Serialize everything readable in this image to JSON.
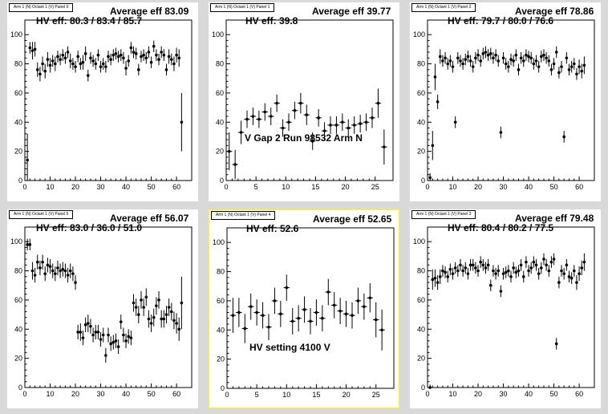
{
  "canvas": {
    "background": "#d9d9d9",
    "highlight_color": "#ffff00"
  },
  "chart_data": [
    {
      "type": "scatter",
      "title": "Arm 1 (N) Octant 1 (V) Panel 0",
      "avg_text": "Average eff 83.09",
      "hv_text": "HV eff:   80.3 / 83.4 / 85.7",
      "annotation": "",
      "highlighted": false,
      "xlim": [
        0,
        66
      ],
      "ylim": [
        0,
        110
      ],
      "xticks": [
        0,
        10,
        20,
        30,
        40,
        50,
        60
      ],
      "yticks": [
        0,
        20,
        40,
        60,
        80,
        100
      ],
      "x": [
        1,
        2,
        3,
        4,
        5,
        6,
        7,
        8,
        9,
        10,
        11,
        12,
        13,
        14,
        15,
        16,
        17,
        18,
        19,
        20,
        21,
        22,
        23,
        24,
        25,
        26,
        27,
        28,
        29,
        30,
        31,
        32,
        33,
        34,
        35,
        36,
        37,
        38,
        39,
        40,
        41,
        42,
        43,
        44,
        45,
        46,
        47,
        48,
        49,
        50,
        51,
        52,
        53,
        54,
        55,
        56,
        57,
        58,
        59,
        60,
        61,
        62
      ],
      "y": [
        14,
        91,
        89,
        90,
        76,
        73,
        80,
        75,
        83,
        79,
        82,
        80,
        85,
        83,
        86,
        84,
        88,
        82,
        80,
        78,
        85,
        80,
        81,
        87,
        72,
        84,
        82,
        80,
        86,
        78,
        80,
        78,
        85,
        83,
        86,
        87,
        85,
        86,
        84,
        77,
        82,
        91,
        88,
        87,
        76,
        85,
        86,
        84,
        88,
        81,
        92,
        86,
        83,
        88,
        86,
        76,
        85,
        83,
        80,
        86,
        84,
        40
      ],
      "yerr": [
        18,
        4,
        6,
        5,
        5,
        5,
        5,
        5,
        5,
        5,
        4,
        5,
        4,
        4,
        4,
        4,
        4,
        5,
        4,
        4,
        4,
        4,
        5,
        5,
        4,
        4,
        4,
        4,
        4,
        4,
        4,
        4,
        4,
        4,
        4,
        4,
        4,
        4,
        4,
        5,
        4,
        4,
        4,
        4,
        4,
        4,
        4,
        4,
        4,
        4,
        4,
        4,
        4,
        4,
        4,
        4,
        5,
        4,
        5,
        5,
        6,
        20
      ]
    },
    {
      "type": "scatter",
      "title": "Arm 1 (N) Octant 1 (V) Panel 1",
      "avg_text": "Average eff 39.77",
      "hv_text": "HV eff:   39.8",
      "annotation": "V Gap 2 Run 98532 Arm N",
      "highlighted": false,
      "xlim": [
        0,
        28
      ],
      "ylim": [
        0,
        110
      ],
      "xticks": [
        0,
        5,
        10,
        15,
        20,
        25
      ],
      "yticks": [
        0,
        20,
        40,
        60,
        80,
        100
      ],
      "x": [
        0.5,
        1.5,
        2.5,
        3.5,
        4.5,
        5.5,
        6.5,
        7.5,
        8.5,
        9.5,
        10.5,
        11.5,
        12.5,
        13.5,
        14.5,
        15.5,
        16.5,
        17.5,
        18.5,
        19.5,
        20.5,
        21.5,
        22.5,
        23.5,
        24.5,
        25.5,
        26.5
      ],
      "y": [
        20,
        11,
        33,
        42,
        44,
        42,
        47,
        44,
        53,
        36,
        40,
        48,
        53,
        45,
        27,
        43,
        34,
        38,
        38,
        40,
        36,
        38,
        39,
        40,
        43,
        53,
        23
      ],
      "yerr": [
        13,
        10,
        8,
        6,
        6,
        6,
        6,
        6,
        6,
        6,
        6,
        6,
        7,
        7,
        6,
        6,
        6,
        6,
        6,
        6,
        6,
        6,
        6,
        6,
        7,
        10,
        12
      ]
    },
    {
      "type": "scatter",
      "title": "Arm 1 (N) Octant 1 (V) Panel 2",
      "avg_text": "Average eff 78.86",
      "hv_text": "HV eff:   79.7 / 80.0 / 76.6",
      "annotation": "",
      "highlighted": false,
      "xlim": [
        0,
        66
      ],
      "ylim": [
        0,
        110
      ],
      "xticks": [
        0,
        10,
        20,
        30,
        40,
        50,
        60
      ],
      "yticks": [
        0,
        20,
        40,
        60,
        80,
        100
      ],
      "x": [
        1,
        2,
        3,
        4,
        5,
        6,
        7,
        8,
        9,
        10,
        11,
        12,
        13,
        14,
        15,
        16,
        17,
        18,
        19,
        20,
        21,
        22,
        23,
        24,
        25,
        26,
        27,
        28,
        29,
        30,
        31,
        32,
        33,
        34,
        35,
        36,
        37,
        38,
        39,
        40,
        41,
        42,
        43,
        44,
        45,
        46,
        47,
        48,
        49,
        50,
        51,
        52,
        53,
        54,
        55,
        56,
        57,
        58,
        59,
        60,
        61,
        62
      ],
      "y": [
        2,
        24,
        71,
        54,
        85,
        82,
        84,
        80,
        82,
        78,
        40,
        84,
        82,
        80,
        83,
        85,
        82,
        78,
        84,
        86,
        82,
        87,
        88,
        86,
        87,
        84,
        86,
        82,
        33,
        84,
        80,
        78,
        83,
        82,
        86,
        76,
        84,
        82,
        86,
        85,
        84,
        80,
        82,
        78,
        85,
        86,
        84,
        82,
        76,
        80,
        88,
        74,
        78,
        30,
        84,
        76,
        78,
        80,
        73,
        78,
        75,
        79
      ],
      "yerr": [
        3,
        10,
        9,
        5,
        5,
        4,
        4,
        4,
        4,
        4,
        4,
        4,
        4,
        4,
        4,
        4,
        4,
        4,
        4,
        4,
        4,
        4,
        4,
        4,
        4,
        4,
        4,
        4,
        4,
        4,
        4,
        4,
        4,
        4,
        4,
        4,
        4,
        4,
        4,
        4,
        4,
        4,
        4,
        4,
        4,
        4,
        4,
        4,
        4,
        4,
        4,
        4,
        4,
        4,
        4,
        4,
        4,
        4,
        4,
        5,
        5,
        6
      ]
    },
    {
      "type": "scatter",
      "title": "Arm 1 (N) Octant 1 (V) Panel 5",
      "avg_text": "Average eff 56.07",
      "hv_text": "HV eff:   83.0 / 36.0 / 51.0",
      "annotation": "",
      "highlighted": false,
      "xlim": [
        0,
        66
      ],
      "ylim": [
        0,
        110
      ],
      "xticks": [
        0,
        10,
        20,
        30,
        40,
        50,
        60
      ],
      "yticks": [
        0,
        20,
        40,
        60,
        80,
        100
      ],
      "x": [
        1,
        2,
        3,
        4,
        5,
        6,
        7,
        8,
        9,
        10,
        11,
        12,
        13,
        14,
        15,
        16,
        17,
        18,
        19,
        20,
        21,
        22,
        23,
        24,
        25,
        26,
        27,
        28,
        29,
        30,
        31,
        32,
        33,
        34,
        35,
        36,
        37,
        38,
        39,
        40,
        41,
        42,
        43,
        44,
        45,
        46,
        47,
        48,
        49,
        50,
        51,
        52,
        53,
        54,
        55,
        56,
        57,
        58,
        59,
        60,
        61,
        62
      ],
      "y": [
        98,
        98,
        80,
        77,
        86,
        82,
        86,
        78,
        84,
        83,
        80,
        78,
        82,
        80,
        81,
        80,
        77,
        80,
        78,
        72,
        38,
        38,
        34,
        43,
        44,
        42,
        36,
        38,
        38,
        33,
        36,
        22,
        36,
        30,
        31,
        32,
        28,
        45,
        36,
        32,
        35,
        34,
        58,
        55,
        50,
        60,
        55,
        62,
        47,
        44,
        48,
        56,
        60,
        47,
        47,
        50,
        55,
        52,
        46,
        44,
        40,
        58
      ],
      "yerr": [
        4,
        4,
        6,
        5,
        5,
        5,
        5,
        5,
        5,
        5,
        5,
        5,
        5,
        5,
        5,
        5,
        5,
        5,
        5,
        5,
        5,
        6,
        5,
        5,
        6,
        5,
        5,
        5,
        5,
        5,
        5,
        5,
        5,
        5,
        5,
        5,
        5,
        5,
        5,
        5,
        5,
        5,
        6,
        6,
        6,
        6,
        6,
        6,
        6,
        6,
        6,
        6,
        6,
        6,
        6,
        6,
        6,
        6,
        6,
        7,
        8,
        18
      ]
    },
    {
      "type": "scatter",
      "title": "Arm 1 (N) Octant 1 (V) Panel 4",
      "avg_text": "Average eff 52.65",
      "hv_text": "HV eff:   52.6",
      "annotation": "HV setting 4100 V",
      "highlighted": true,
      "xlim": [
        0,
        28
      ],
      "ylim": [
        0,
        110
      ],
      "xticks": [
        0,
        5,
        10,
        15,
        20,
        25
      ],
      "yticks": [
        0,
        20,
        40,
        60,
        80,
        100
      ],
      "x": [
        1,
        2,
        3,
        4,
        5,
        6,
        7,
        8,
        9,
        10,
        11,
        12,
        13,
        14,
        15,
        16,
        17,
        18,
        19,
        20,
        21,
        22,
        23,
        24,
        25,
        26
      ],
      "y": [
        50,
        52,
        41,
        56,
        52,
        50,
        42,
        60,
        51,
        69,
        46,
        48,
        54,
        46,
        52,
        48,
        66,
        57,
        53,
        51,
        50,
        60,
        56,
        62,
        47,
        40
      ],
      "yerr": [
        12,
        10,
        10,
        9,
        9,
        9,
        9,
        9,
        9,
        9,
        9,
        9,
        9,
        9,
        9,
        9,
        9,
        9,
        9,
        9,
        9,
        9,
        9,
        10,
        12,
        14
      ]
    },
    {
      "type": "scatter",
      "title": "Arm 1 (N) Octant 1 (V) Panel 3",
      "avg_text": "Average eff 79.48",
      "hv_text": "HV eff:   80.4 / 80.2 / 77.5",
      "annotation": "",
      "highlighted": false,
      "xlim": [
        0,
        66
      ],
      "ylim": [
        0,
        110
      ],
      "xticks": [
        0,
        10,
        20,
        30,
        40,
        50,
        60
      ],
      "yticks": [
        0,
        20,
        40,
        60,
        80,
        100
      ],
      "x": [
        1,
        2,
        3,
        4,
        5,
        6,
        7,
        8,
        9,
        10,
        11,
        12,
        13,
        14,
        15,
        16,
        17,
        18,
        19,
        20,
        21,
        22,
        23,
        24,
        25,
        26,
        27,
        28,
        29,
        30,
        31,
        32,
        33,
        34,
        35,
        36,
        37,
        38,
        39,
        40,
        41,
        42,
        43,
        44,
        45,
        46,
        47,
        48,
        49,
        50,
        51,
        52,
        53,
        54,
        55,
        56,
        57,
        58,
        59,
        60,
        61,
        62
      ],
      "y": [
        0,
        74,
        75,
        72,
        76,
        80,
        79,
        76,
        81,
        78,
        82,
        80,
        84,
        80,
        82,
        78,
        84,
        84,
        82,
        80,
        86,
        84,
        82,
        84,
        70,
        80,
        78,
        80,
        66,
        78,
        79,
        80,
        76,
        82,
        79,
        80,
        84,
        76,
        86,
        80,
        82,
        86,
        84,
        78,
        82,
        88,
        84,
        80,
        86,
        88,
        30,
        72,
        80,
        78,
        84,
        76,
        75,
        80,
        72,
        78,
        82,
        86
      ],
      "yerr": [
        2,
        7,
        6,
        5,
        5,
        4,
        4,
        4,
        4,
        4,
        4,
        4,
        4,
        4,
        4,
        4,
        4,
        4,
        4,
        4,
        4,
        4,
        4,
        4,
        4,
        4,
        4,
        4,
        4,
        4,
        4,
        4,
        4,
        4,
        4,
        4,
        4,
        4,
        4,
        4,
        4,
        4,
        4,
        4,
        4,
        4,
        4,
        4,
        4,
        4,
        4,
        4,
        4,
        4,
        4,
        4,
        4,
        4,
        5,
        5,
        5,
        6
      ]
    }
  ]
}
